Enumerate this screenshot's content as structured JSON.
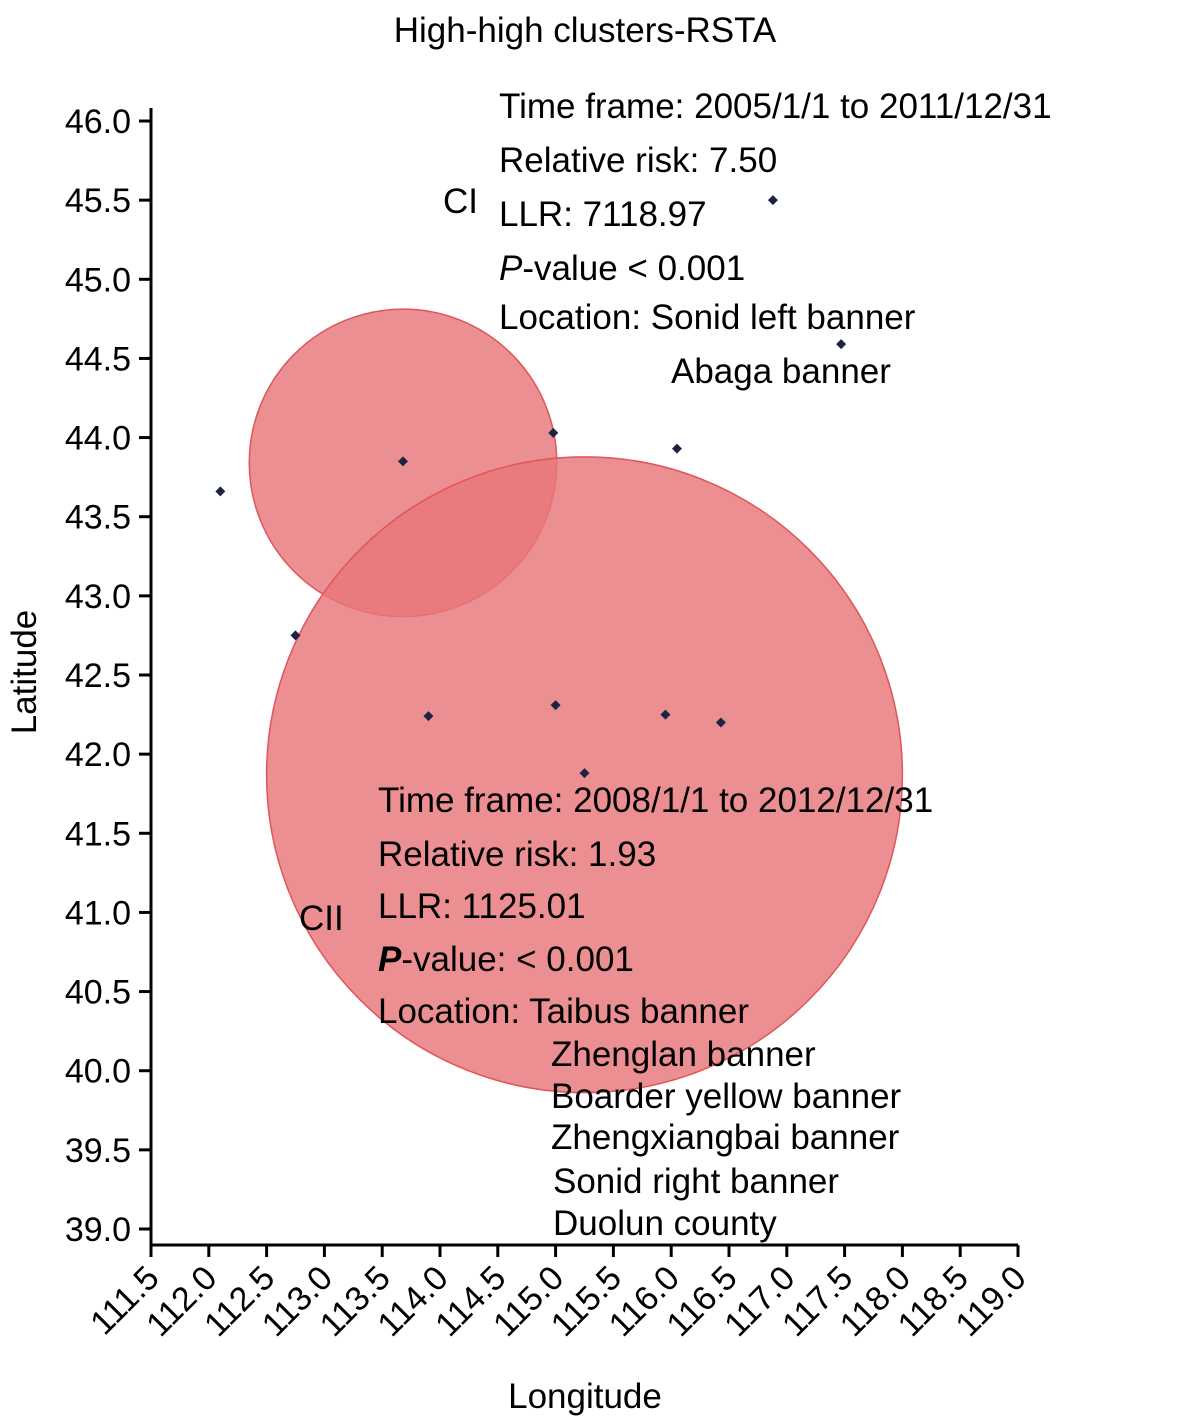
{
  "chart_data": {
    "type": "scatter",
    "title": "High-high clusters-RSTA",
    "xlabel": "Longitude",
    "ylabel": "Latitude",
    "xlim": [
      111.5,
      119.0
    ],
    "ylim": [
      39.0,
      46.0
    ],
    "xticks": [
      "111.5",
      "112.0",
      "112.5",
      "113.0",
      "113.5",
      "114.0",
      "114.5",
      "115.0",
      "115.5",
      "116.0",
      "116.5",
      "117.0",
      "117.5",
      "118.0",
      "118.5",
      "119.0"
    ],
    "yticks": [
      "39.0",
      "39.5",
      "40.0",
      "40.5",
      "41.0",
      "41.5",
      "42.0",
      "42.5",
      "43.0",
      "43.5",
      "44.0",
      "44.5",
      "45.0",
      "45.5",
      "46.0"
    ],
    "grid": false,
    "points": [
      {
        "x": 112.1,
        "y": 43.66
      },
      {
        "x": 112.75,
        "y": 42.75
      },
      {
        "x": 113.68,
        "y": 43.85
      },
      {
        "x": 113.9,
        "y": 42.24
      },
      {
        "x": 114.98,
        "y": 44.03
      },
      {
        "x": 115.0,
        "y": 42.31
      },
      {
        "x": 115.25,
        "y": 41.88
      },
      {
        "x": 115.95,
        "y": 42.25
      },
      {
        "x": 116.05,
        "y": 43.93
      },
      {
        "x": 116.43,
        "y": 42.2
      },
      {
        "x": 116.88,
        "y": 45.5
      },
      {
        "x": 117.47,
        "y": 44.59
      }
    ],
    "clusters": [
      {
        "name": "CI",
        "center": {
          "x": 113.68,
          "y": 43.84
        },
        "radius_lon": 1.33,
        "color": "#e8767a",
        "time_frame_label": "Time frame: 2005/1/1 to 2011/12/31",
        "relative_risk_label": "Relative risk: 7.50",
        "llr_label": "LLR: 7118.97",
        "p_italic": "P",
        "p_rest": "-value < 0.001",
        "location_label": "Location: Sonid left banner",
        "location_more": [
          "Abaga banner"
        ]
      },
      {
        "name": "CII",
        "center": {
          "x": 115.25,
          "y": 41.87
        },
        "radius_lon": 2.75,
        "color": "#e8767a",
        "time_frame_label": "Time frame: 2008/1/1 to 2012/12/31",
        "relative_risk_label": "Relative risk: 1.93",
        "llr_label": "LLR: 1125.01",
        "p_italic": "P",
        "p_rest": "-value: < 0.001",
        "location_label": "Location: Taibus banner",
        "location_more": [
          "Zhenglan banner",
          "Boarder yellow banner",
          "Zhengxiangbai banner",
          "Sonid right banner",
          "Duolun county"
        ]
      }
    ]
  }
}
